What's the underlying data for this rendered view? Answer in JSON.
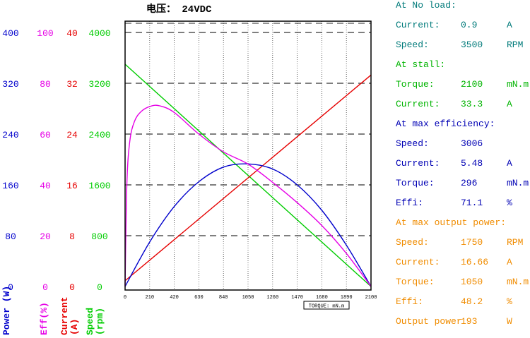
{
  "chart_data": {
    "type": "line",
    "title": "电压：  24VDC",
    "xlabel": "TORQUE: mN.m",
    "x_ticks": [
      "0",
      "210",
      "420",
      "630",
      "840",
      "1050",
      "1260",
      "1470",
      "1680",
      "1890",
      "2100"
    ],
    "xlim": [
      0,
      2100
    ],
    "y_axes": [
      {
        "name": "Power (W)",
        "label_lines": [
          "Power (W)"
        ],
        "color": "#0000cc",
        "ticks": [
          "0",
          "80",
          "160",
          "240",
          "320",
          "400"
        ],
        "ylim": [
          0,
          400
        ]
      },
      {
        "name": "Eff(%)",
        "label_lines": [
          "Eff(%)"
        ],
        "color": "#e600e6",
        "ticks": [
          "0",
          "20",
          "40",
          "60",
          "80",
          "100"
        ],
        "ylim": [
          0,
          100
        ]
      },
      {
        "name": "Current (A)",
        "label_lines": [
          "Current",
          "(A)"
        ],
        "color": "#e60000",
        "ticks": [
          "0",
          "8",
          "16",
          "24",
          "32",
          "40"
        ],
        "ylim": [
          0,
          40
        ]
      },
      {
        "name": "Speed (rpm)",
        "label_lines": [
          "Speed",
          "(rpm)"
        ],
        "color": "#00cc00",
        "ticks": [
          "0",
          "800",
          "1600",
          "2400",
          "3200",
          "4000"
        ],
        "ylim": [
          0,
          4000
        ]
      }
    ],
    "series": [
      {
        "axis": 3,
        "color": "#00cc00",
        "points": [
          [
            0,
            3500
          ],
          [
            2100,
            0
          ]
        ]
      },
      {
        "axis": 2,
        "color": "#e60000",
        "points": [
          [
            0,
            0.9
          ],
          [
            2100,
            33.3
          ]
        ]
      },
      {
        "axis": 0,
        "color": "#0000cc",
        "points": [
          [
            0,
            0
          ],
          [
            210,
            70
          ],
          [
            420,
            126
          ],
          [
            630,
            165
          ],
          [
            840,
            188
          ],
          [
            1050,
            193
          ],
          [
            1260,
            185
          ],
          [
            1470,
            160
          ],
          [
            1680,
            120
          ],
          [
            1890,
            65
          ],
          [
            2100,
            0
          ]
        ]
      },
      {
        "axis": 1,
        "color": "#e600e6",
        "points": [
          [
            0,
            0
          ],
          [
            15,
            40
          ],
          [
            40,
            57
          ],
          [
            80,
            65
          ],
          [
            140,
            69
          ],
          [
            220,
            71
          ],
          [
            296,
            71.1
          ],
          [
            420,
            68.5
          ],
          [
            630,
            60
          ],
          [
            840,
            53
          ],
          [
            1050,
            48.2
          ],
          [
            1260,
            41
          ],
          [
            1470,
            33
          ],
          [
            1680,
            24
          ],
          [
            1890,
            13
          ],
          [
            2100,
            0
          ]
        ]
      }
    ],
    "grid": "horizontal-dashed",
    "legend": "none"
  },
  "info_panel": {
    "no_load": {
      "header": "At No load:",
      "color": "#007a7a",
      "rows": [
        {
          "label": "Current:",
          "value": "0.9",
          "unit": "A"
        },
        {
          "label": "Speed:",
          "value": "3500",
          "unit": "RPM"
        }
      ]
    },
    "stall": {
      "header": "At stall:",
      "color": "#00b400",
      "rows": [
        {
          "label": "Torque:",
          "value": "2100",
          "unit": "mN.m"
        },
        {
          "label": "Current:",
          "value": "33.3",
          "unit": "A"
        }
      ]
    },
    "max_efficiency": {
      "header": "At max efficiency:",
      "color": "#0000b4",
      "rows": [
        {
          "label": "Speed:",
          "value": "3006",
          "unit": ""
        },
        {
          "label": "Current:",
          "value": "5.48",
          "unit": "A"
        },
        {
          "label": "Torque:",
          "value": "296",
          "unit": "mN.m"
        },
        {
          "label": "Effi:",
          "value": "71.1",
          "unit": "%"
        }
      ]
    },
    "max_output": {
      "header": "At max output power:",
      "color": "#f08c00",
      "rows": [
        {
          "label": "Speed:",
          "value": "1750",
          "unit": "RPM"
        },
        {
          "label": "Current:",
          "value": "16.66",
          "unit": "A"
        },
        {
          "label": "Torque:",
          "value": "1050",
          "unit": "mN.m"
        },
        {
          "label": "Effi:",
          "value": "48.2",
          "unit": "%"
        },
        {
          "label": "Output power",
          "value": "193",
          "unit": "W"
        }
      ]
    }
  }
}
